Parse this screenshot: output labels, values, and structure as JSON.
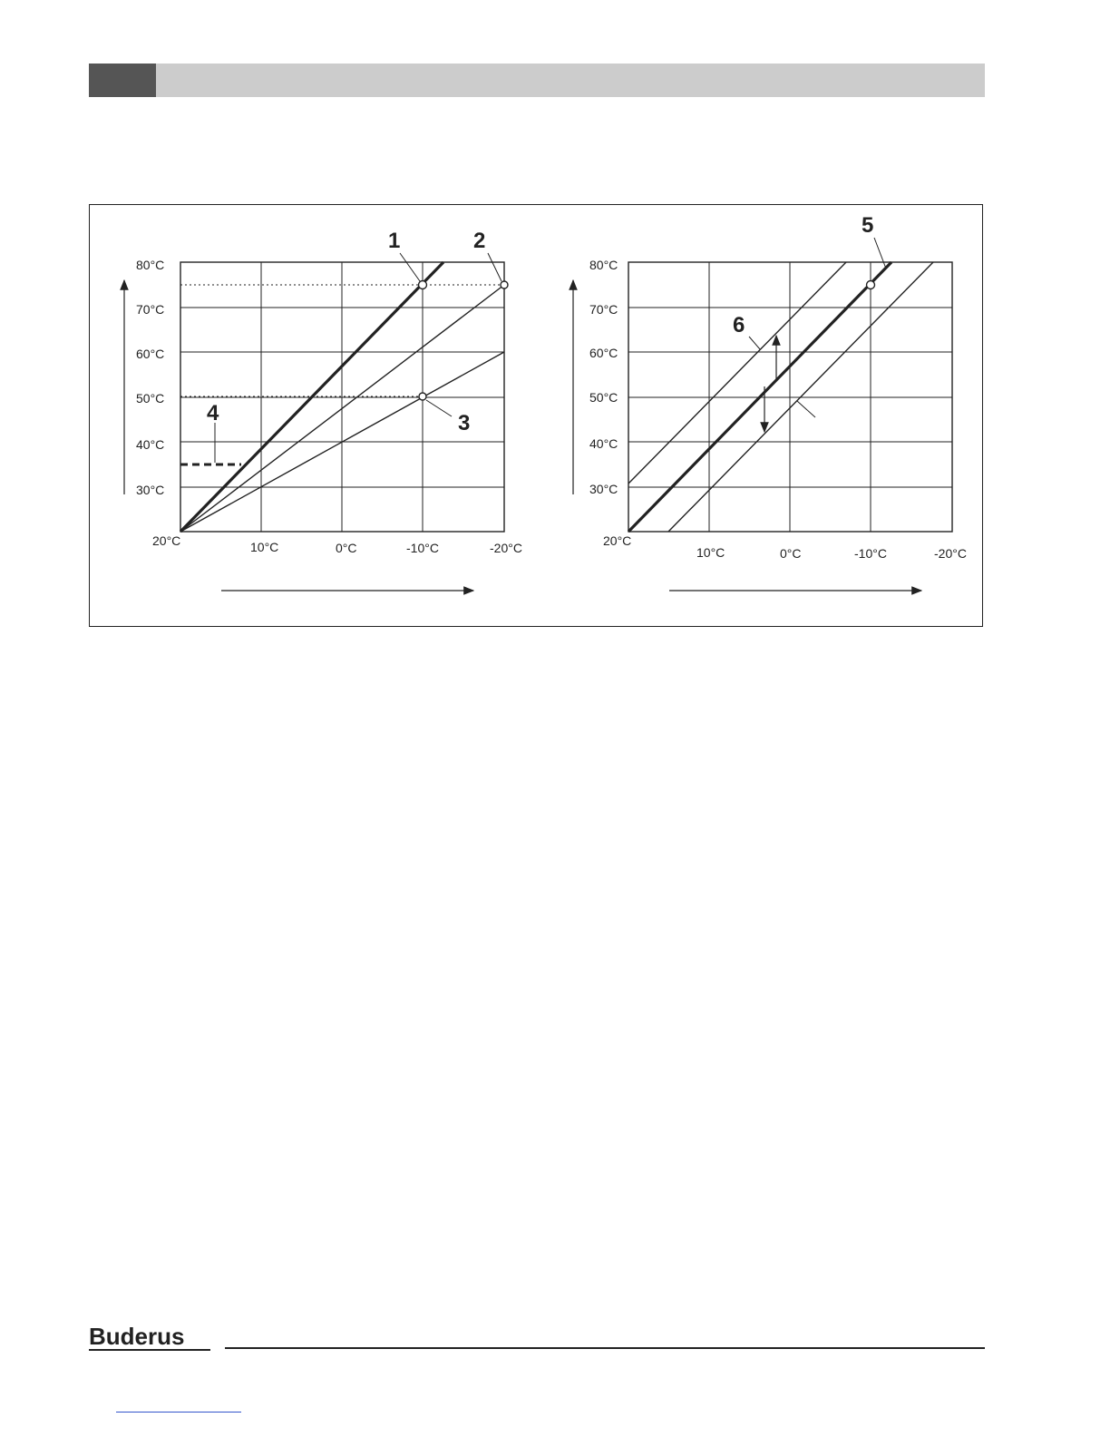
{
  "brand": {
    "logo_text": "Buderus"
  },
  "figure": {
    "left_chart": {
      "x_ticks": [
        "20°C",
        "10°C",
        "0°C",
        "-10°C",
        "-20°C"
      ],
      "y_ticks": [
        "80°C",
        "70°C",
        "60°C",
        "50°C",
        "40°C",
        "30°C"
      ],
      "callouts": [
        "1",
        "2",
        "3",
        "4"
      ]
    },
    "right_chart": {
      "x_ticks": [
        "20°C",
        "10°C",
        "0°C",
        "-10°C",
        "-20°C"
      ],
      "y_ticks": [
        "80°C",
        "70°C",
        "60°C",
        "50°C",
        "40°C",
        "30°C"
      ],
      "callouts": [
        "5",
        "6"
      ]
    }
  },
  "chart_data": [
    {
      "type": "line",
      "xlim": [
        20,
        -20
      ],
      "ylim": [
        20,
        80
      ],
      "grid": true,
      "series": [
        {
          "x": [
            20,
            -12
          ],
          "y": [
            20,
            80
          ],
          "style": "bold"
        },
        {
          "x": [
            20,
            -20
          ],
          "y": [
            20,
            75
          ],
          "style": "thin"
        },
        {
          "x": [
            20,
            -20
          ],
          "y": [
            20,
            60
          ],
          "style": "thin"
        }
      ],
      "points": [
        {
          "x": -10,
          "y": 75,
          "callout": "1"
        },
        {
          "x": -20,
          "y": 75,
          "callout": "2"
        },
        {
          "x": -10,
          "y": 50,
          "callout": "3"
        }
      ],
      "dotted_guides": [
        {
          "axis": "y",
          "value": 75
        },
        {
          "axis": "y",
          "value": 50
        },
        {
          "axis": "x",
          "value": -10
        }
      ],
      "dashed_marker": {
        "y": 35,
        "x_from": 20,
        "x_to": 12.5,
        "callout": "4"
      }
    },
    {
      "type": "line",
      "xlim": [
        20,
        -20
      ],
      "ylim": [
        20,
        80
      ],
      "grid": true,
      "series": [
        {
          "x": [
            20,
            -12.2
          ],
          "y": [
            30.6,
            80
          ],
          "style": "thin"
        },
        {
          "x": [
            20,
            -12.2
          ],
          "y": [
            20,
            80
          ],
          "style": "bold"
        },
        {
          "x": [
            15,
            -17.6
          ],
          "y": [
            20,
            80
          ],
          "style": "thin"
        }
      ],
      "points": [
        {
          "x": -10,
          "y": 75,
          "callout": "5"
        }
      ],
      "shift_arrows": {
        "x": 0,
        "callout": "6"
      }
    }
  ]
}
